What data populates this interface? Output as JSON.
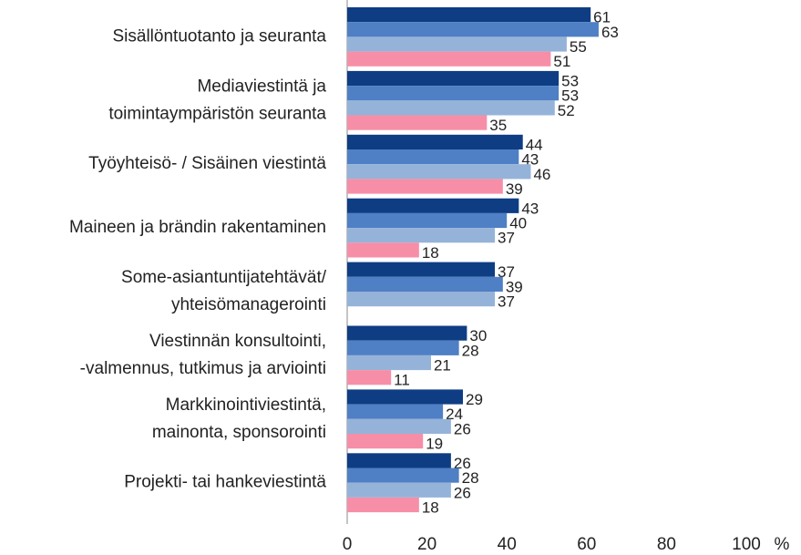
{
  "chart_data": {
    "type": "bar",
    "orientation": "horizontal",
    "categories": [
      "Sisällöntuotanto ja seuranta",
      "Mediaviestintä ja\ntoimintaympäristön seuranta",
      "Työyhteisö- / Sisäinen viestintä",
      "Maineen ja brändin rakentaminen",
      "Some-asiantuntijatehtävät/\nyhteisömanagerointi",
      "Viestinnän konsultointi,\n-valmennus, tutkimus ja arviointi",
      "Markkinointiviestintä,\nmainonta, sponsorointi",
      "Projekti- tai hankeviestintä"
    ],
    "series": [
      {
        "color": "#0f3d84",
        "values": [
          61,
          53,
          44,
          43,
          37,
          30,
          29,
          26
        ]
      },
      {
        "color": "#4f7fc4",
        "values": [
          63,
          53,
          43,
          40,
          39,
          28,
          24,
          28
        ]
      },
      {
        "color": "#95b3d9",
        "values": [
          55,
          52,
          46,
          37,
          37,
          21,
          26,
          26
        ]
      },
      {
        "color": "#f78ea8",
        "values": [
          51,
          35,
          39,
          18,
          null,
          11,
          19,
          18
        ]
      }
    ],
    "xlim": [
      0,
      100
    ],
    "xticks": [
      0,
      20,
      40,
      60,
      80,
      100
    ],
    "xlabel": "%",
    "grid": false
  }
}
